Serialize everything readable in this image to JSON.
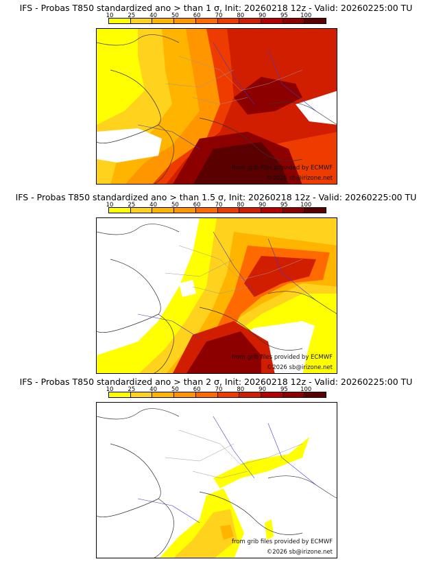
{
  "legend": {
    "ticks": [
      "10",
      "25",
      "40",
      "50",
      "60",
      "70",
      "80",
      "90",
      "95",
      "100"
    ],
    "colors": [
      "#ffff00",
      "#ffd21e",
      "#ffb400",
      "#ff9600",
      "#ff6a00",
      "#ee3c00",
      "#d21e00",
      "#b40000",
      "#8c0000",
      "#5a0000"
    ]
  },
  "panels": [
    {
      "title": "IFS - Probas T850  standardized ano > than 1 σ, Init: 20260218 12z - Valid: 20260225:00 TU",
      "credit_source": "from grib files provided by ECMWF",
      "credit_copyright": "©2026 sb@irizone.net"
    },
    {
      "title": "IFS - Probas T850  standardized ano > than 1.5 σ, Init: 20260218 12z - Valid: 20260225:00 TU",
      "credit_source": "from grib files provided by ECMWF",
      "credit_copyright": "©2026 sb@irizone.net"
    },
    {
      "title": "IFS - Probas T850  standardized ano > than 2 σ, Init: 20260218 12z - Valid: 20260225:00 TU",
      "credit_source": "from grib files provided by ECMWF",
      "credit_copyright": "©2026 sb@irizone.net"
    }
  ]
}
